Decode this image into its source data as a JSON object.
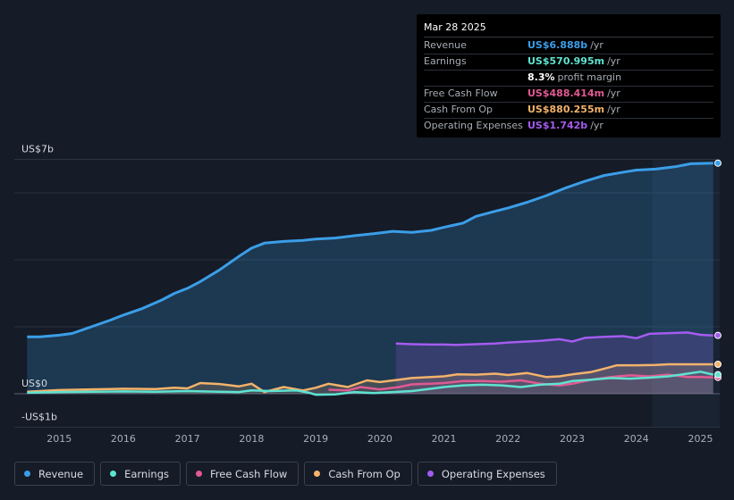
{
  "tooltip": {
    "date": "Mar 28 2025",
    "rows": [
      {
        "label": "Revenue",
        "value": "US$6.888b",
        "unit": "/yr",
        "color": "#3b9ee8"
      },
      {
        "label": "Earnings",
        "value": "US$570.995m",
        "unit": "/yr",
        "color": "#5fe3d1"
      },
      {
        "label": "",
        "value": "8.3%",
        "unit": "profit margin",
        "color": "#ffffff"
      },
      {
        "label": "Free Cash Flow",
        "value": "US$488.414m",
        "unit": "/yr",
        "color": "#e05a92"
      },
      {
        "label": "Cash From Op",
        "value": "US$880.255m",
        "unit": "/yr",
        "color": "#f3b36b"
      },
      {
        "label": "Operating Expenses",
        "value": "US$1.742b",
        "unit": "/yr",
        "color": "#a45cf0"
      }
    ]
  },
  "legend": [
    {
      "label": "Revenue",
      "color": "#3b9ee8"
    },
    {
      "label": "Earnings",
      "color": "#5fe3d1"
    },
    {
      "label": "Free Cash Flow",
      "color": "#e05a92"
    },
    {
      "label": "Cash From Op",
      "color": "#f3b36b"
    },
    {
      "label": "Operating Expenses",
      "color": "#a45cf0"
    }
  ],
  "chart_data": {
    "type": "line",
    "title": "",
    "xlabel": "",
    "ylabel": "",
    "ylim": [
      -1,
      7
    ],
    "xlim": [
      2014.3,
      2025.3
    ],
    "y_tick_labels": [
      {
        "value": 7,
        "label": "US$7b"
      },
      {
        "value": 0,
        "label": "US$0"
      },
      {
        "value": -1,
        "label": "-US$1b"
      }
    ],
    "x_ticks": [
      2015,
      2016,
      2017,
      2018,
      2019,
      2020,
      2021,
      2022,
      2023,
      2024,
      2025
    ],
    "forecast_shade_start": 2024.25,
    "series": [
      {
        "name": "Revenue",
        "color": "#3b9ee8",
        "fill": true,
        "points": [
          [
            2014.5,
            1.7
          ],
          [
            2014.7,
            1.7
          ],
          [
            2015.0,
            1.75
          ],
          [
            2015.2,
            1.8
          ],
          [
            2015.5,
            2.0
          ],
          [
            2015.8,
            2.2
          ],
          [
            2016.0,
            2.35
          ],
          [
            2016.3,
            2.55
          ],
          [
            2016.6,
            2.8
          ],
          [
            2016.8,
            3.0
          ],
          [
            2017.0,
            3.15
          ],
          [
            2017.2,
            3.35
          ],
          [
            2017.5,
            3.7
          ],
          [
            2017.8,
            4.1
          ],
          [
            2018.0,
            4.35
          ],
          [
            2018.2,
            4.5
          ],
          [
            2018.5,
            4.55
          ],
          [
            2018.8,
            4.58
          ],
          [
            2019.0,
            4.62
          ],
          [
            2019.3,
            4.65
          ],
          [
            2019.6,
            4.72
          ],
          [
            2019.9,
            4.78
          ],
          [
            2020.2,
            4.85
          ],
          [
            2020.5,
            4.82
          ],
          [
            2020.8,
            4.88
          ],
          [
            2021.0,
            4.97
          ],
          [
            2021.3,
            5.1
          ],
          [
            2021.5,
            5.3
          ],
          [
            2021.8,
            5.45
          ],
          [
            2022.0,
            5.55
          ],
          [
            2022.3,
            5.72
          ],
          [
            2022.6,
            5.92
          ],
          [
            2022.9,
            6.15
          ],
          [
            2023.2,
            6.35
          ],
          [
            2023.5,
            6.52
          ],
          [
            2023.8,
            6.62
          ],
          [
            2024.0,
            6.68
          ],
          [
            2024.3,
            6.71
          ],
          [
            2024.6,
            6.78
          ],
          [
            2024.85,
            6.87
          ],
          [
            2025.2,
            6.888
          ]
        ]
      },
      {
        "name": "Operating Expenses",
        "color": "#a45cf0",
        "fill": true,
        "points": [
          [
            2020.25,
            1.5
          ],
          [
            2020.5,
            1.48
          ],
          [
            2020.8,
            1.47
          ],
          [
            2021.0,
            1.47
          ],
          [
            2021.2,
            1.46
          ],
          [
            2021.5,
            1.48
          ],
          [
            2021.8,
            1.5
          ],
          [
            2022.0,
            1.53
          ],
          [
            2022.3,
            1.56
          ],
          [
            2022.5,
            1.58
          ],
          [
            2022.8,
            1.63
          ],
          [
            2023.0,
            1.56
          ],
          [
            2023.2,
            1.67
          ],
          [
            2023.5,
            1.7
          ],
          [
            2023.8,
            1.72
          ],
          [
            2024.0,
            1.66
          ],
          [
            2024.2,
            1.79
          ],
          [
            2024.5,
            1.81
          ],
          [
            2024.8,
            1.83
          ],
          [
            2025.0,
            1.76
          ],
          [
            2025.2,
            1.742
          ]
        ]
      },
      {
        "name": "Cash From Op",
        "color": "#f3b36b",
        "fill": true,
        "points": [
          [
            2014.5,
            0.06
          ],
          [
            2015.0,
            0.11
          ],
          [
            2015.5,
            0.13
          ],
          [
            2016.0,
            0.15
          ],
          [
            2016.5,
            0.14
          ],
          [
            2016.8,
            0.18
          ],
          [
            2017.0,
            0.16
          ],
          [
            2017.2,
            0.32
          ],
          [
            2017.5,
            0.29
          ],
          [
            2017.8,
            0.22
          ],
          [
            2018.0,
            0.3
          ],
          [
            2018.2,
            0.05
          ],
          [
            2018.5,
            0.2
          ],
          [
            2018.8,
            0.1
          ],
          [
            2019.0,
            0.18
          ],
          [
            2019.2,
            0.3
          ],
          [
            2019.5,
            0.2
          ],
          [
            2019.8,
            0.4
          ],
          [
            2020.0,
            0.35
          ],
          [
            2020.3,
            0.42
          ],
          [
            2020.5,
            0.47
          ],
          [
            2020.8,
            0.5
          ],
          [
            2021.0,
            0.52
          ],
          [
            2021.2,
            0.58
          ],
          [
            2021.5,
            0.57
          ],
          [
            2021.8,
            0.6
          ],
          [
            2022.0,
            0.56
          ],
          [
            2022.3,
            0.62
          ],
          [
            2022.6,
            0.5
          ],
          [
            2022.8,
            0.52
          ],
          [
            2023.0,
            0.58
          ],
          [
            2023.3,
            0.65
          ],
          [
            2023.5,
            0.75
          ],
          [
            2023.7,
            0.85
          ],
          [
            2024.0,
            0.85
          ],
          [
            2024.3,
            0.86
          ],
          [
            2024.5,
            0.88
          ],
          [
            2024.8,
            0.88
          ],
          [
            2025.2,
            0.88
          ]
        ]
      },
      {
        "name": "Free Cash Flow",
        "color": "#e05a92",
        "fill": false,
        "points": [
          [
            2019.2,
            0.12
          ],
          [
            2019.5,
            0.1
          ],
          [
            2019.7,
            0.2
          ],
          [
            2020.0,
            0.13
          ],
          [
            2020.3,
            0.2
          ],
          [
            2020.5,
            0.28
          ],
          [
            2020.8,
            0.3
          ],
          [
            2021.0,
            0.32
          ],
          [
            2021.3,
            0.38
          ],
          [
            2021.6,
            0.38
          ],
          [
            2021.9,
            0.36
          ],
          [
            2022.2,
            0.4
          ],
          [
            2022.5,
            0.3
          ],
          [
            2022.8,
            0.25
          ],
          [
            2023.0,
            0.3
          ],
          [
            2023.3,
            0.42
          ],
          [
            2023.6,
            0.5
          ],
          [
            2023.9,
            0.55
          ],
          [
            2024.2,
            0.52
          ],
          [
            2024.5,
            0.57
          ],
          [
            2024.8,
            0.5
          ],
          [
            2025.0,
            0.5
          ],
          [
            2025.2,
            0.488
          ]
        ]
      },
      {
        "name": "Earnings",
        "color": "#5fe3d1",
        "fill": false,
        "points": [
          [
            2014.5,
            0.03
          ],
          [
            2015.0,
            0.05
          ],
          [
            2015.5,
            0.06
          ],
          [
            2016.0,
            0.07
          ],
          [
            2016.5,
            0.06
          ],
          [
            2017.0,
            0.08
          ],
          [
            2017.5,
            0.06
          ],
          [
            2017.8,
            0.05
          ],
          [
            2018.0,
            0.1
          ],
          [
            2018.3,
            0.08
          ],
          [
            2018.7,
            0.1
          ],
          [
            2018.9,
            0.03
          ],
          [
            2019.0,
            -0.03
          ],
          [
            2019.3,
            -0.02
          ],
          [
            2019.6,
            0.05
          ],
          [
            2019.9,
            0.02
          ],
          [
            2020.2,
            0.05
          ],
          [
            2020.5,
            0.08
          ],
          [
            2020.8,
            0.15
          ],
          [
            2021.0,
            0.2
          ],
          [
            2021.3,
            0.25
          ],
          [
            2021.6,
            0.27
          ],
          [
            2021.9,
            0.25
          ],
          [
            2022.2,
            0.2
          ],
          [
            2022.5,
            0.27
          ],
          [
            2022.8,
            0.3
          ],
          [
            2023.0,
            0.38
          ],
          [
            2023.3,
            0.42
          ],
          [
            2023.6,
            0.47
          ],
          [
            2023.9,
            0.45
          ],
          [
            2024.2,
            0.48
          ],
          [
            2024.5,
            0.52
          ],
          [
            2024.8,
            0.6
          ],
          [
            2025.0,
            0.66
          ],
          [
            2025.2,
            0.571
          ]
        ]
      }
    ]
  }
}
